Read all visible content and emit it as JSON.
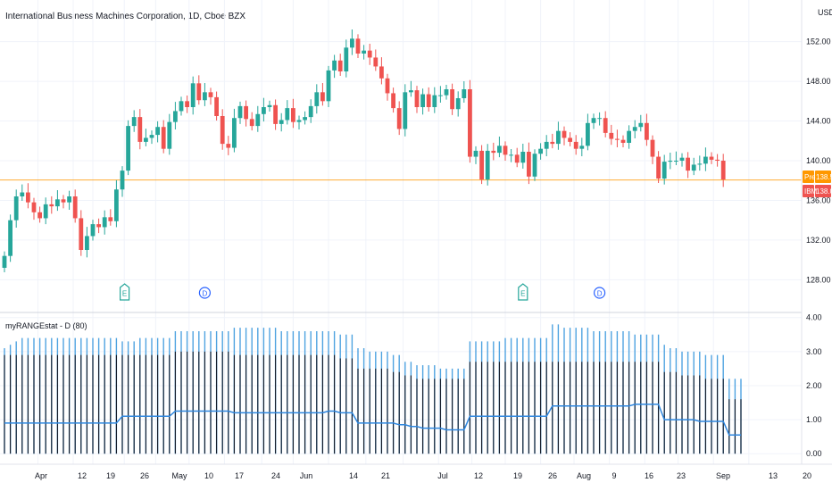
{
  "header": {
    "symbol_title": "International Business Machines Corporation, 1D, Cboe BZX",
    "currency": "USD"
  },
  "indicator": {
    "title": "myRANGEstat - D (80)"
  },
  "price_tags": {
    "pre_label": "Pre",
    "pre_value": "138.51",
    "ibm_label": "IBM",
    "ibm_value": "138.06",
    "pre_color": "#ff9800",
    "ibm_color": "#ef5350"
  },
  "colors": {
    "up": "#26a69a",
    "down": "#ef5350",
    "range_bar": "#4fa3e0",
    "stat_bar": "#131722",
    "stat_line": "#2e86de",
    "price_line": "#ff9800",
    "earnings_marker": "#26a69a",
    "dividend_marker": "#2962ff"
  },
  "events": [
    {
      "label": "E",
      "type": "earnings",
      "date": "Apr 19"
    },
    {
      "label": "D",
      "type": "dividend",
      "date": "May 7"
    },
    {
      "label": "E",
      "type": "earnings",
      "date": "Jul 19"
    },
    {
      "label": "D",
      "type": "dividend",
      "date": "Aug 9"
    }
  ],
  "chart_data": [
    {
      "type": "candlestick",
      "title": "International Business Machines Corporation, 1D, Cboe BZX",
      "ylim": [
        126.5,
        153.5
      ],
      "y_ticks": [
        "152.00",
        "148.00",
        "144.00",
        "140.00",
        "136.00",
        "132.00",
        "128.00"
      ],
      "x_ticks": [
        "Apr",
        "12",
        "19",
        "26",
        "May",
        "10",
        "17",
        "24",
        "Jun",
        "14",
        "21",
        "Jul",
        "12",
        "19",
        "26",
        "Aug",
        "9",
        "16",
        "23",
        "Sep",
        "13",
        "20"
      ],
      "current_price": 138.06,
      "premarket_price": 138.51,
      "closes": [
        130.4,
        134.0,
        136.4,
        136.8,
        135.8,
        134.8,
        134.2,
        135.6,
        135.4,
        136.1,
        135.8,
        136.4,
        134.2,
        131.0,
        132.4,
        133.6,
        133.3,
        134.3,
        133.9,
        137.1,
        139.0,
        143.5,
        144.4,
        141.9,
        142.3,
        142.6,
        143.4,
        141.2,
        143.9,
        145.0,
        146.0,
        145.4,
        147.8,
        146.1,
        146.9,
        146.4,
        144.5,
        141.7,
        141.3,
        144.3,
        145.5,
        144.2,
        143.5,
        144.7,
        145.4,
        145.6,
        143.7,
        144.1,
        145.3,
        143.9,
        144.1,
        144.4,
        145.5,
        146.9,
        146.0,
        149.1,
        150.1,
        149.0,
        151.4,
        152.3,
        150.8,
        151.1,
        150.4,
        149.5,
        148.3,
        146.8,
        145.3,
        143.2,
        146.9,
        147.1,
        145.4,
        146.7,
        145.4,
        146.6,
        146.6,
        147.2,
        145.2,
        146.3,
        147.2,
        140.4,
        141.0,
        138.1,
        141.0,
        140.8,
        141.5,
        140.6,
        140.6,
        139.8,
        140.9,
        138.4,
        140.7,
        141.2,
        141.9,
        141.7,
        143.0,
        142.3,
        141.9,
        141.2,
        141.5,
        143.8,
        144.3,
        144.3,
        142.8,
        142.2,
        142.1,
        141.8,
        143.0,
        143.4,
        143.8,
        142.1,
        140.4,
        138.2,
        139.9,
        140.0,
        140.0,
        140.3,
        139.0,
        139.6,
        139.7,
        140.4,
        140.1,
        140.0,
        138.1
      ]
    },
    {
      "type": "bar",
      "title": "myRANGEstat - D (80)",
      "ylim": [
        -0.1,
        4.15
      ],
      "y_ticks": [
        "4.00",
        "3.00",
        "2.00",
        "1.00",
        "0.00"
      ],
      "series": [
        {
          "values": [
            3.1,
            3.2,
            3.3,
            3.4,
            3.4,
            3.4,
            3.4,
            3.4,
            3.4,
            3.4,
            3.4,
            3.4,
            3.4,
            3.4,
            3.4,
            3.4,
            3.4,
            3.4,
            3.4,
            3.4,
            3.3,
            3.3,
            3.3,
            3.4,
            3.4,
            3.4,
            3.4,
            3.4,
            3.4,
            3.6,
            3.6,
            3.6,
            3.6,
            3.6,
            3.6,
            3.6,
            3.6,
            3.6,
            3.6,
            3.7,
            3.7,
            3.7,
            3.7,
            3.7,
            3.7,
            3.7,
            3.7,
            3.6,
            3.6,
            3.6,
            3.6,
            3.6,
            3.6,
            3.6,
            3.6,
            3.6,
            3.6,
            3.5,
            3.5,
            3.5,
            3.1,
            3.1,
            3.0,
            3.0,
            3.0,
            3.0,
            2.9,
            2.9,
            2.7,
            2.7,
            2.6,
            2.6,
            2.6,
            2.6,
            2.5,
            2.5,
            2.5,
            2.5,
            2.5,
            3.3,
            3.3,
            3.3,
            3.3,
            3.3,
            3.3,
            3.4,
            3.4,
            3.4,
            3.4,
            3.4,
            3.4,
            3.4,
            3.4,
            3.8,
            3.8,
            3.7,
            3.7,
            3.7,
            3.7,
            3.7,
            3.6,
            3.6,
            3.6,
            3.6,
            3.6,
            3.6,
            3.6,
            3.5,
            3.5,
            3.5,
            3.5,
            3.5,
            3.2,
            3.1,
            3.1,
            3.0,
            3.0,
            3.0,
            3.0,
            2.9,
            2.9,
            2.9,
            2.9,
            2.2,
            2.2,
            2.2
          ]
        },
        {
          "values": [
            2.9,
            2.9,
            2.9,
            2.9,
            2.9,
            2.9,
            2.9,
            2.9,
            2.9,
            2.9,
            2.9,
            2.9,
            2.9,
            2.9,
            2.9,
            2.9,
            2.9,
            2.9,
            2.9,
            2.9,
            2.9,
            2.9,
            2.9,
            2.9,
            2.9,
            2.9,
            2.9,
            2.9,
            2.9,
            3.0,
            3.0,
            3.0,
            3.0,
            3.0,
            3.0,
            3.0,
            3.0,
            3.0,
            3.0,
            2.9,
            2.9,
            2.9,
            2.9,
            2.9,
            2.9,
            2.9,
            2.9,
            2.9,
            2.9,
            2.9,
            2.9,
            2.9,
            2.9,
            2.9,
            2.9,
            2.9,
            2.9,
            2.8,
            2.8,
            2.8,
            2.5,
            2.5,
            2.5,
            2.5,
            2.5,
            2.5,
            2.4,
            2.4,
            2.3,
            2.3,
            2.2,
            2.2,
            2.2,
            2.2,
            2.2,
            2.2,
            2.2,
            2.2,
            2.2,
            2.7,
            2.7,
            2.7,
            2.7,
            2.7,
            2.7,
            2.7,
            2.7,
            2.7,
            2.7,
            2.7,
            2.7,
            2.7,
            2.7,
            2.7,
            2.7,
            2.7,
            2.7,
            2.7,
            2.7,
            2.7,
            2.7,
            2.7,
            2.7,
            2.7,
            2.7,
            2.7,
            2.7,
            2.7,
            2.7,
            2.7,
            2.7,
            2.7,
            2.4,
            2.4,
            2.4,
            2.3,
            2.3,
            2.3,
            2.3,
            2.2,
            2.2,
            2.2,
            2.2,
            1.6,
            1.6,
            1.6
          ]
        },
        {
          "values": [
            0.9,
            0.9,
            0.9,
            0.9,
            0.9,
            0.9,
            0.9,
            0.9,
            0.9,
            0.9,
            0.9,
            0.9,
            0.9,
            0.9,
            0.9,
            0.9,
            0.9,
            0.9,
            0.9,
            0.9,
            1.1,
            1.1,
            1.1,
            1.1,
            1.1,
            1.1,
            1.1,
            1.1,
            1.1,
            1.25,
            1.25,
            1.25,
            1.25,
            1.25,
            1.25,
            1.25,
            1.25,
            1.25,
            1.25,
            1.2,
            1.2,
            1.2,
            1.2,
            1.2,
            1.2,
            1.2,
            1.2,
            1.2,
            1.2,
            1.2,
            1.2,
            1.2,
            1.2,
            1.2,
            1.2,
            1.25,
            1.25,
            1.2,
            1.2,
            1.2,
            0.9,
            0.9,
            0.9,
            0.9,
            0.9,
            0.9,
            0.9,
            0.85,
            0.85,
            0.8,
            0.8,
            0.75,
            0.75,
            0.75,
            0.75,
            0.7,
            0.7,
            0.7,
            0.7,
            1.1,
            1.1,
            1.1,
            1.1,
            1.1,
            1.1,
            1.1,
            1.1,
            1.1,
            1.1,
            1.1,
            1.1,
            1.1,
            1.1,
            1.4,
            1.4,
            1.4,
            1.4,
            1.4,
            1.4,
            1.4,
            1.4,
            1.4,
            1.4,
            1.4,
            1.4,
            1.4,
            1.4,
            1.45,
            1.45,
            1.45,
            1.45,
            1.45,
            1.0,
            1.0,
            1.0,
            1.0,
            1.0,
            1.0,
            0.95,
            0.95,
            0.95,
            0.95,
            0.95,
            0.55,
            0.55,
            0.55
          ]
        }
      ]
    }
  ]
}
